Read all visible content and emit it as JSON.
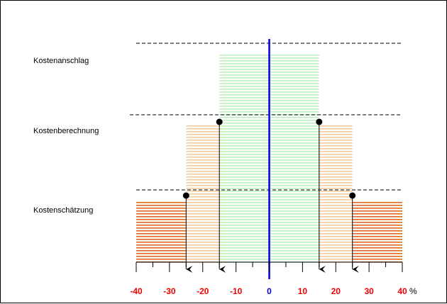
{
  "chart_data": {
    "type": "bar",
    "x_unit": "%",
    "xlim": [
      -40,
      40
    ],
    "x_ticks": [
      -40,
      -30,
      -20,
      -10,
      0,
      10,
      20,
      30,
      40
    ],
    "x_tick_labels": [
      "-40",
      "-30",
      "-20",
      "-10",
      "0",
      "10",
      "20",
      "30",
      "40"
    ],
    "categories": [
      "Kostenanschlag",
      "Kostenberechnung",
      "Kostenschätzung"
    ],
    "ranges": [
      {
        "category": "Kostenanschlag",
        "min": -15,
        "max": 15
      },
      {
        "category": "Kostenberechnung",
        "min": -25,
        "max": 25
      },
      {
        "category": "Kostenschätzung",
        "min": -40,
        "max": 40
      }
    ],
    "markers": [
      {
        "category": "Kostenberechnung",
        "x": -15
      },
      {
        "category": "Kostenberechnung",
        "x": 15
      },
      {
        "category": "Kostenschätzung",
        "x": -25
      },
      {
        "category": "Kostenschätzung",
        "x": 25
      }
    ],
    "colors": {
      "anschlag": "#b8f0b8",
      "berechnung": "#f8c898",
      "schaetzung": "#e06010",
      "zero_line": "#0000dd",
      "tick_labels": "#ee0000",
      "zero_label": "#0000dd"
    },
    "grid": false
  }
}
